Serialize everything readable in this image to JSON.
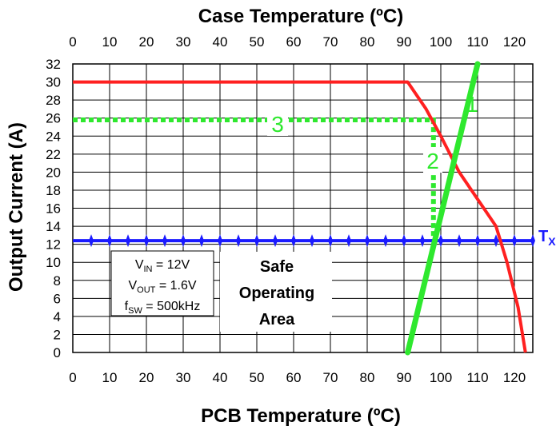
{
  "chart_data": {
    "type": "line",
    "title_top": "Case Temperature (ºC)",
    "xlabel": "PCB Temperature (ºC)",
    "ylabel": "Output Current (A)",
    "x_bottom_range": [
      0,
      125
    ],
    "x_top_range": [
      0,
      125
    ],
    "ylim": [
      0,
      32
    ],
    "grid": true,
    "x_ticks": [
      "0",
      "10",
      "20",
      "30",
      "40",
      "50",
      "60",
      "70",
      "80",
      "90",
      "100",
      "110",
      "120"
    ],
    "x_tick_values": [
      0,
      10,
      20,
      30,
      40,
      50,
      60,
      70,
      80,
      90,
      100,
      110,
      120
    ],
    "y_ticks": [
      "0",
      "2",
      "4",
      "6",
      "8",
      "10",
      "12",
      "14",
      "16",
      "18",
      "20",
      "22",
      "24",
      "26",
      "28",
      "30",
      "32"
    ],
    "y_tick_values": [
      0,
      2,
      4,
      6,
      8,
      10,
      12,
      14,
      16,
      18,
      20,
      22,
      24,
      26,
      28,
      30,
      32
    ],
    "series": [
      {
        "color": "#ff2020",
        "x": [
          0,
          91,
          96,
          100,
          105,
          110,
          115,
          118,
          121,
          123
        ],
        "y": [
          30,
          30,
          27,
          24,
          20,
          17,
          14,
          10,
          5,
          0
        ]
      },
      {
        "color": "#2ee82e",
        "x": [
          91,
          110
        ],
        "y": [
          0,
          32
        ]
      },
      {
        "color": "#2ee82e",
        "style": "dotted",
        "x": [
          0,
          98,
          98
        ],
        "y": [
          25.8,
          25.8,
          12.5
        ]
      },
      {
        "color": "#1a1aff",
        "x": [
          0,
          125
        ],
        "y": [
          12.4,
          12.4
        ]
      }
    ],
    "annotations": {
      "step1": "1",
      "step2": "2",
      "step3": "3",
      "tx_label": "T",
      "tx_sub": "X",
      "soa_line1": "Safe",
      "soa_line2": "Operating",
      "soa_line3": "Area",
      "vin": "V",
      "vin_sub": "IN",
      "vin_val": " = 12V",
      "vout": "V",
      "vout_sub": "OUT",
      "vout_val": " = 1.6V",
      "fsw": "f",
      "fsw_sub": "SW",
      "fsw_val": " = 500kHz"
    }
  }
}
